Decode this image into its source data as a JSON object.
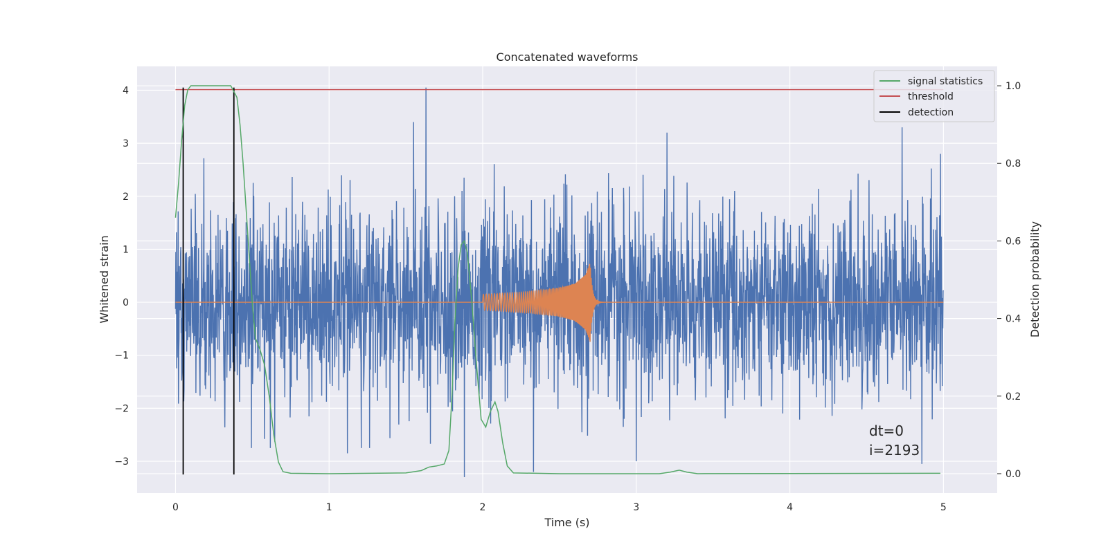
{
  "chart_data": {
    "type": "line",
    "title": "Concatenated waveforms",
    "xlabel": "Time (s)",
    "ylabel": "Whitened strain",
    "y2label": "Detection probability",
    "xlim": [
      -0.25,
      5.35
    ],
    "ylim": [
      -3.6,
      4.45
    ],
    "y2lim": [
      -0.05,
      1.05
    ],
    "x_ticks": [
      0,
      1,
      2,
      3,
      4,
      5
    ],
    "y_ticks": [
      -3,
      -2,
      -1,
      0,
      1,
      2,
      3,
      4
    ],
    "y2_ticks": [
      0.0,
      0.2,
      0.4,
      0.6,
      0.8,
      1.0
    ],
    "x_tick_labels": [
      "0",
      "1",
      "2",
      "3",
      "4",
      "5"
    ],
    "y_tick_labels": [
      "−3",
      "−2",
      "−1",
      "0",
      "1",
      "2",
      "3",
      "4"
    ],
    "y2_tick_labels": [
      "0.0",
      "0.2",
      "0.4",
      "0.6",
      "0.8",
      "1.0"
    ],
    "grid": true,
    "background": "#eaeaf2",
    "legend_position": "top-right",
    "annotation": [
      "dt=0",
      "i=2193"
    ],
    "series": [
      {
        "name": "",
        "kind": "noise",
        "axis": "left",
        "color": "#4c72b0",
        "x_range": [
          0,
          5
        ],
        "typical_amplitude": 1.2,
        "y_range": [
          -3.3,
          4.05
        ],
        "peaks": [
          {
            "x": 1.63,
            "y": 4.05
          },
          {
            "x": 1.55,
            "y": 3.4
          },
          {
            "x": 4.73,
            "y": 3.3
          },
          {
            "x": 3.2,
            "y": 3.2
          },
          {
            "x": 4.98,
            "y": 2.8
          },
          {
            "x": 1.88,
            "y": -3.3
          },
          {
            "x": 2.33,
            "y": -3.2
          },
          {
            "x": 4.86,
            "y": -3.05
          },
          {
            "x": 3.0,
            "y": -3.0
          },
          {
            "x": 1.12,
            "y": -2.85
          }
        ]
      },
      {
        "name": "",
        "kind": "chirp",
        "axis": "left",
        "color": "#dd8452",
        "x_range": [
          0,
          5
        ],
        "chirp_start": 2.0,
        "chirp_merger": 2.7,
        "envelope": [
          {
            "x": 2.0,
            "a": 0.15
          },
          {
            "x": 2.3,
            "a": 0.2
          },
          {
            "x": 2.5,
            "a": 0.27
          },
          {
            "x": 2.6,
            "a": 0.35
          },
          {
            "x": 2.67,
            "a": 0.52
          },
          {
            "x": 2.7,
            "a": 0.75
          }
        ]
      },
      {
        "name": "signal statistics",
        "axis": "right",
        "color": "#55a868",
        "points": [
          [
            0.0,
            0.66
          ],
          [
            0.02,
            0.75
          ],
          [
            0.04,
            0.86
          ],
          [
            0.06,
            0.95
          ],
          [
            0.08,
            0.99
          ],
          [
            0.1,
            1.0
          ],
          [
            0.2,
            1.0
          ],
          [
            0.3,
            1.0
          ],
          [
            0.36,
            1.0
          ],
          [
            0.4,
            0.97
          ],
          [
            0.42,
            0.9
          ],
          [
            0.44,
            0.8
          ],
          [
            0.46,
            0.68
          ],
          [
            0.48,
            0.56
          ],
          [
            0.5,
            0.44
          ],
          [
            0.52,
            0.35
          ],
          [
            0.55,
            0.32
          ],
          [
            0.58,
            0.28
          ],
          [
            0.61,
            0.2
          ],
          [
            0.64,
            0.1
          ],
          [
            0.67,
            0.03
          ],
          [
            0.7,
            0.005
          ],
          [
            0.75,
            0.001
          ],
          [
            1.0,
            0.0
          ],
          [
            1.5,
            0.002
          ],
          [
            1.6,
            0.008
          ],
          [
            1.65,
            0.017
          ],
          [
            1.7,
            0.02
          ],
          [
            1.75,
            0.025
          ],
          [
            1.78,
            0.06
          ],
          [
            1.8,
            0.2
          ],
          [
            1.82,
            0.4
          ],
          [
            1.84,
            0.53
          ],
          [
            1.86,
            0.59
          ],
          [
            1.88,
            0.6
          ],
          [
            1.9,
            0.57
          ],
          [
            1.93,
            0.44
          ],
          [
            1.96,
            0.28
          ],
          [
            1.99,
            0.14
          ],
          [
            2.02,
            0.12
          ],
          [
            2.05,
            0.16
          ],
          [
            2.08,
            0.185
          ],
          [
            2.1,
            0.16
          ],
          [
            2.13,
            0.08
          ],
          [
            2.16,
            0.02
          ],
          [
            2.2,
            0.002
          ],
          [
            2.5,
            0.0
          ],
          [
            3.15,
            0.0
          ],
          [
            3.22,
            0.004
          ],
          [
            3.28,
            0.009
          ],
          [
            3.33,
            0.004
          ],
          [
            3.4,
            0.0
          ],
          [
            4.9,
            0.001
          ],
          [
            4.98,
            0.001
          ]
        ]
      },
      {
        "name": "threshold",
        "axis": "right",
        "color": "#c44e52",
        "x": [
          0,
          5
        ],
        "y": [
          0.99,
          0.99
        ]
      },
      {
        "name": "detection",
        "axis": "left",
        "color": "#000000",
        "x": [
          0.05,
          0.38
        ],
        "y_range": [
          -3.25,
          4.05
        ]
      }
    ]
  }
}
